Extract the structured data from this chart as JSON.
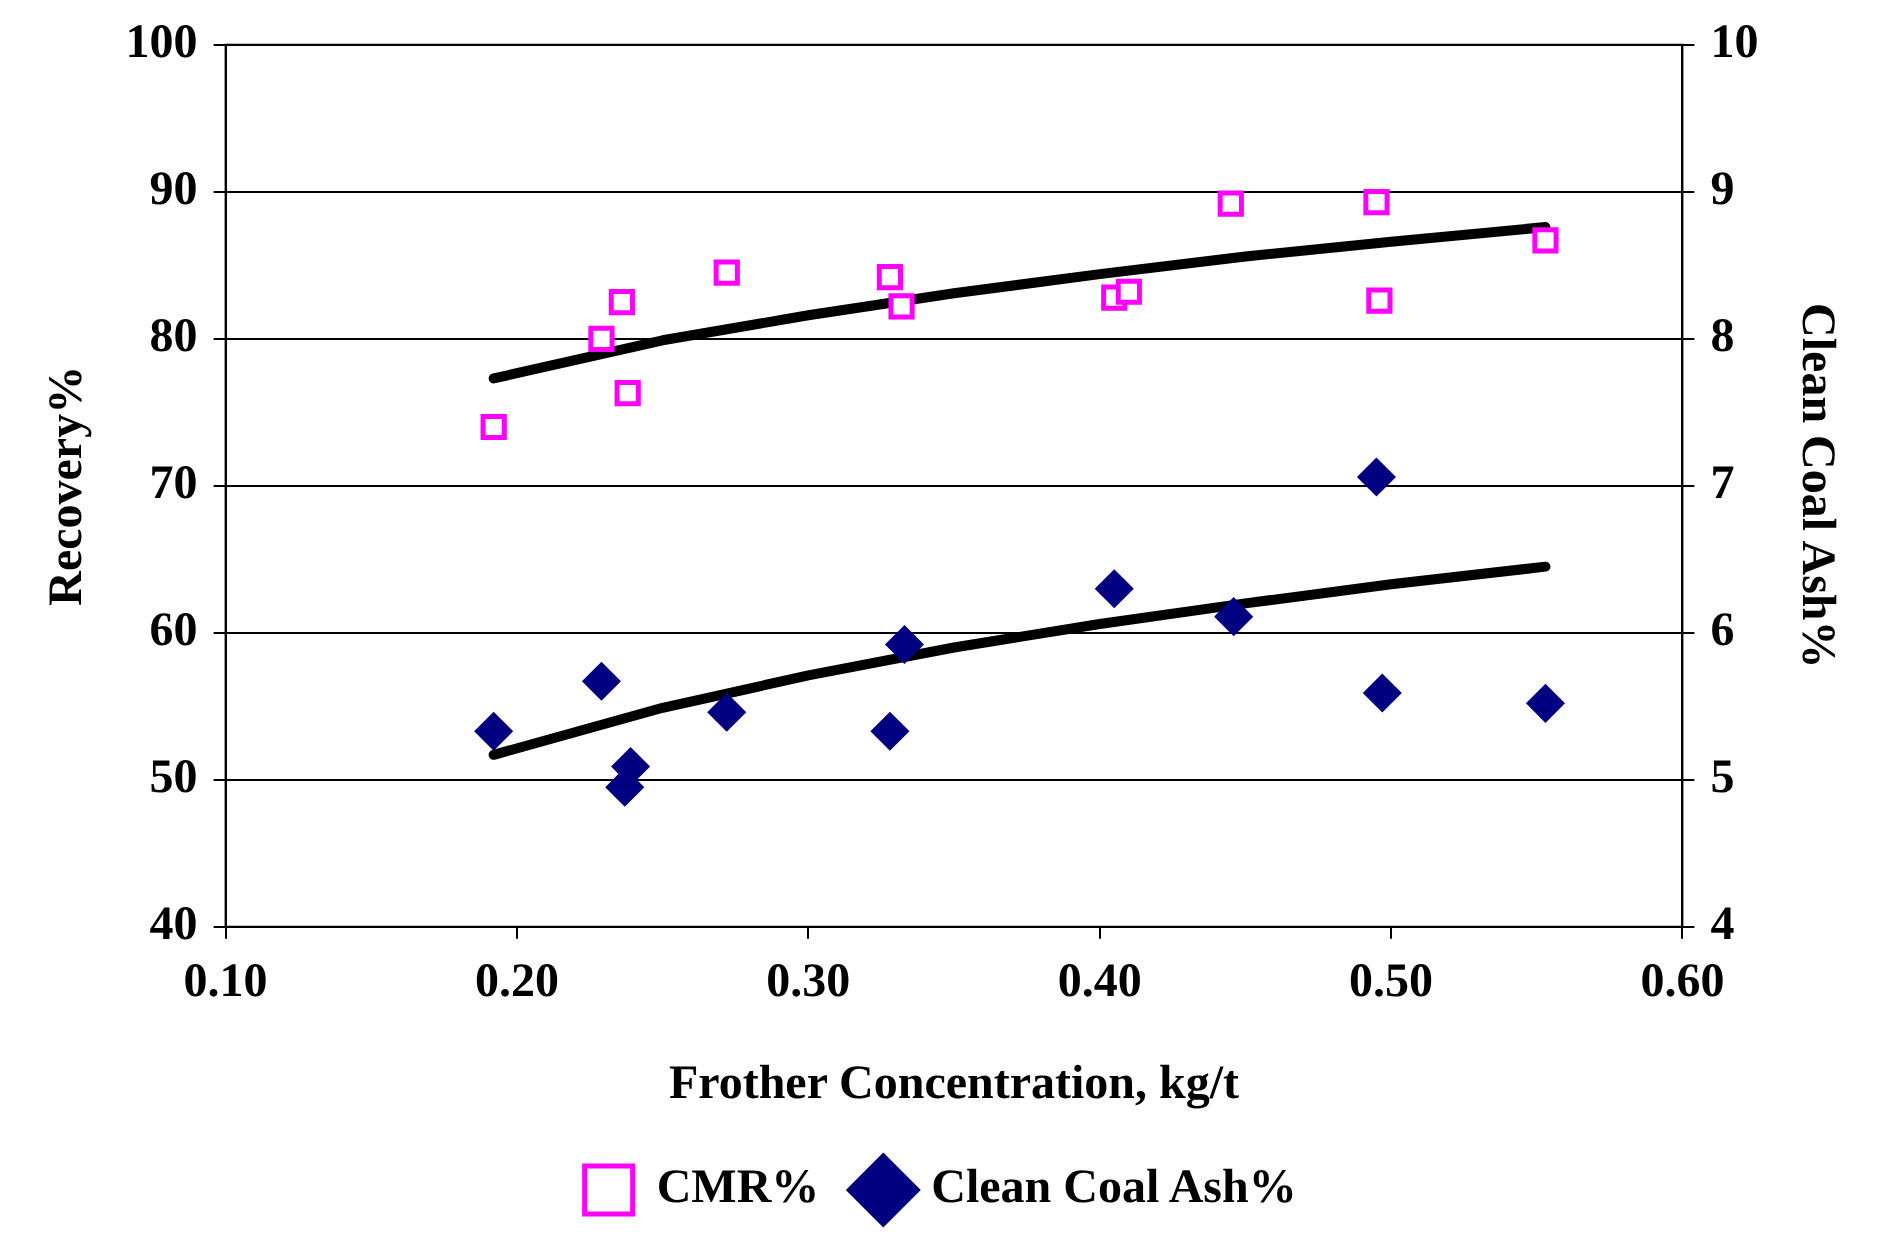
{
  "chart_data": {
    "type": "scatter",
    "xlabel": "Frother Concentration, kg/t",
    "ylabel": "Recovery%",
    "y2label": "Clean Coal Ash%",
    "xlim": [
      0.1,
      0.6
    ],
    "xticks": [
      {
        "value": 0.1,
        "label": "0.10"
      },
      {
        "value": 0.2,
        "label": "0.20"
      },
      {
        "value": 0.3,
        "label": "0.30"
      },
      {
        "value": 0.4,
        "label": "0.40"
      },
      {
        "value": 0.5,
        "label": "0.50"
      },
      {
        "value": 0.6,
        "label": "0.60"
      }
    ],
    "ylim": [
      40,
      100
    ],
    "yticks": [
      40,
      50,
      60,
      70,
      80,
      90,
      100
    ],
    "y2lim": [
      4,
      10
    ],
    "y2ticks": [
      4,
      5,
      6,
      7,
      8,
      9,
      10
    ],
    "grid": "y",
    "legend": "bottom",
    "series": [
      {
        "name": "CMR%",
        "marker": "square",
        "color": "#ff00ff",
        "x": [
          0.192,
          0.229,
          0.236,
          0.238,
          0.272,
          0.328,
          0.332,
          0.405,
          0.41,
          0.445,
          0.495,
          0.496,
          0.553
        ],
        "values": [
          74.0,
          80.0,
          82.5,
          76.3,
          84.5,
          84.2,
          82.2,
          82.8,
          83.2,
          89.2,
          89.3,
          82.6,
          86.7
        ]
      },
      {
        "name": "Clean Coal Ash%",
        "marker": "diamond",
        "axis": "y2",
        "color": "#000080",
        "x": [
          0.192,
          0.229,
          0.239,
          0.237,
          0.272,
          0.328,
          0.333,
          0.405,
          0.446,
          0.495,
          0.497,
          0.553
        ],
        "values": [
          5.33,
          5.67,
          5.09,
          4.95,
          5.46,
          5.33,
          5.92,
          6.3,
          6.11,
          7.06,
          5.59,
          5.52
        ]
      },
      {
        "type": "line",
        "marker": "none",
        "color": "#000000",
        "x": [
          0.192,
          0.25,
          0.3,
          0.35,
          0.4,
          0.45,
          0.5,
          0.553
        ],
        "values": [
          77.3,
          79.9,
          81.6,
          83.1,
          84.4,
          85.6,
          86.6,
          87.6
        ]
      },
      {
        "type": "line",
        "marker": "none",
        "axis": "y2",
        "color": "#000000",
        "x": [
          0.192,
          0.25,
          0.3,
          0.35,
          0.4,
          0.45,
          0.5,
          0.553
        ],
        "values": [
          5.17,
          5.49,
          5.71,
          5.9,
          6.06,
          6.2,
          6.33,
          6.45
        ]
      }
    ]
  }
}
